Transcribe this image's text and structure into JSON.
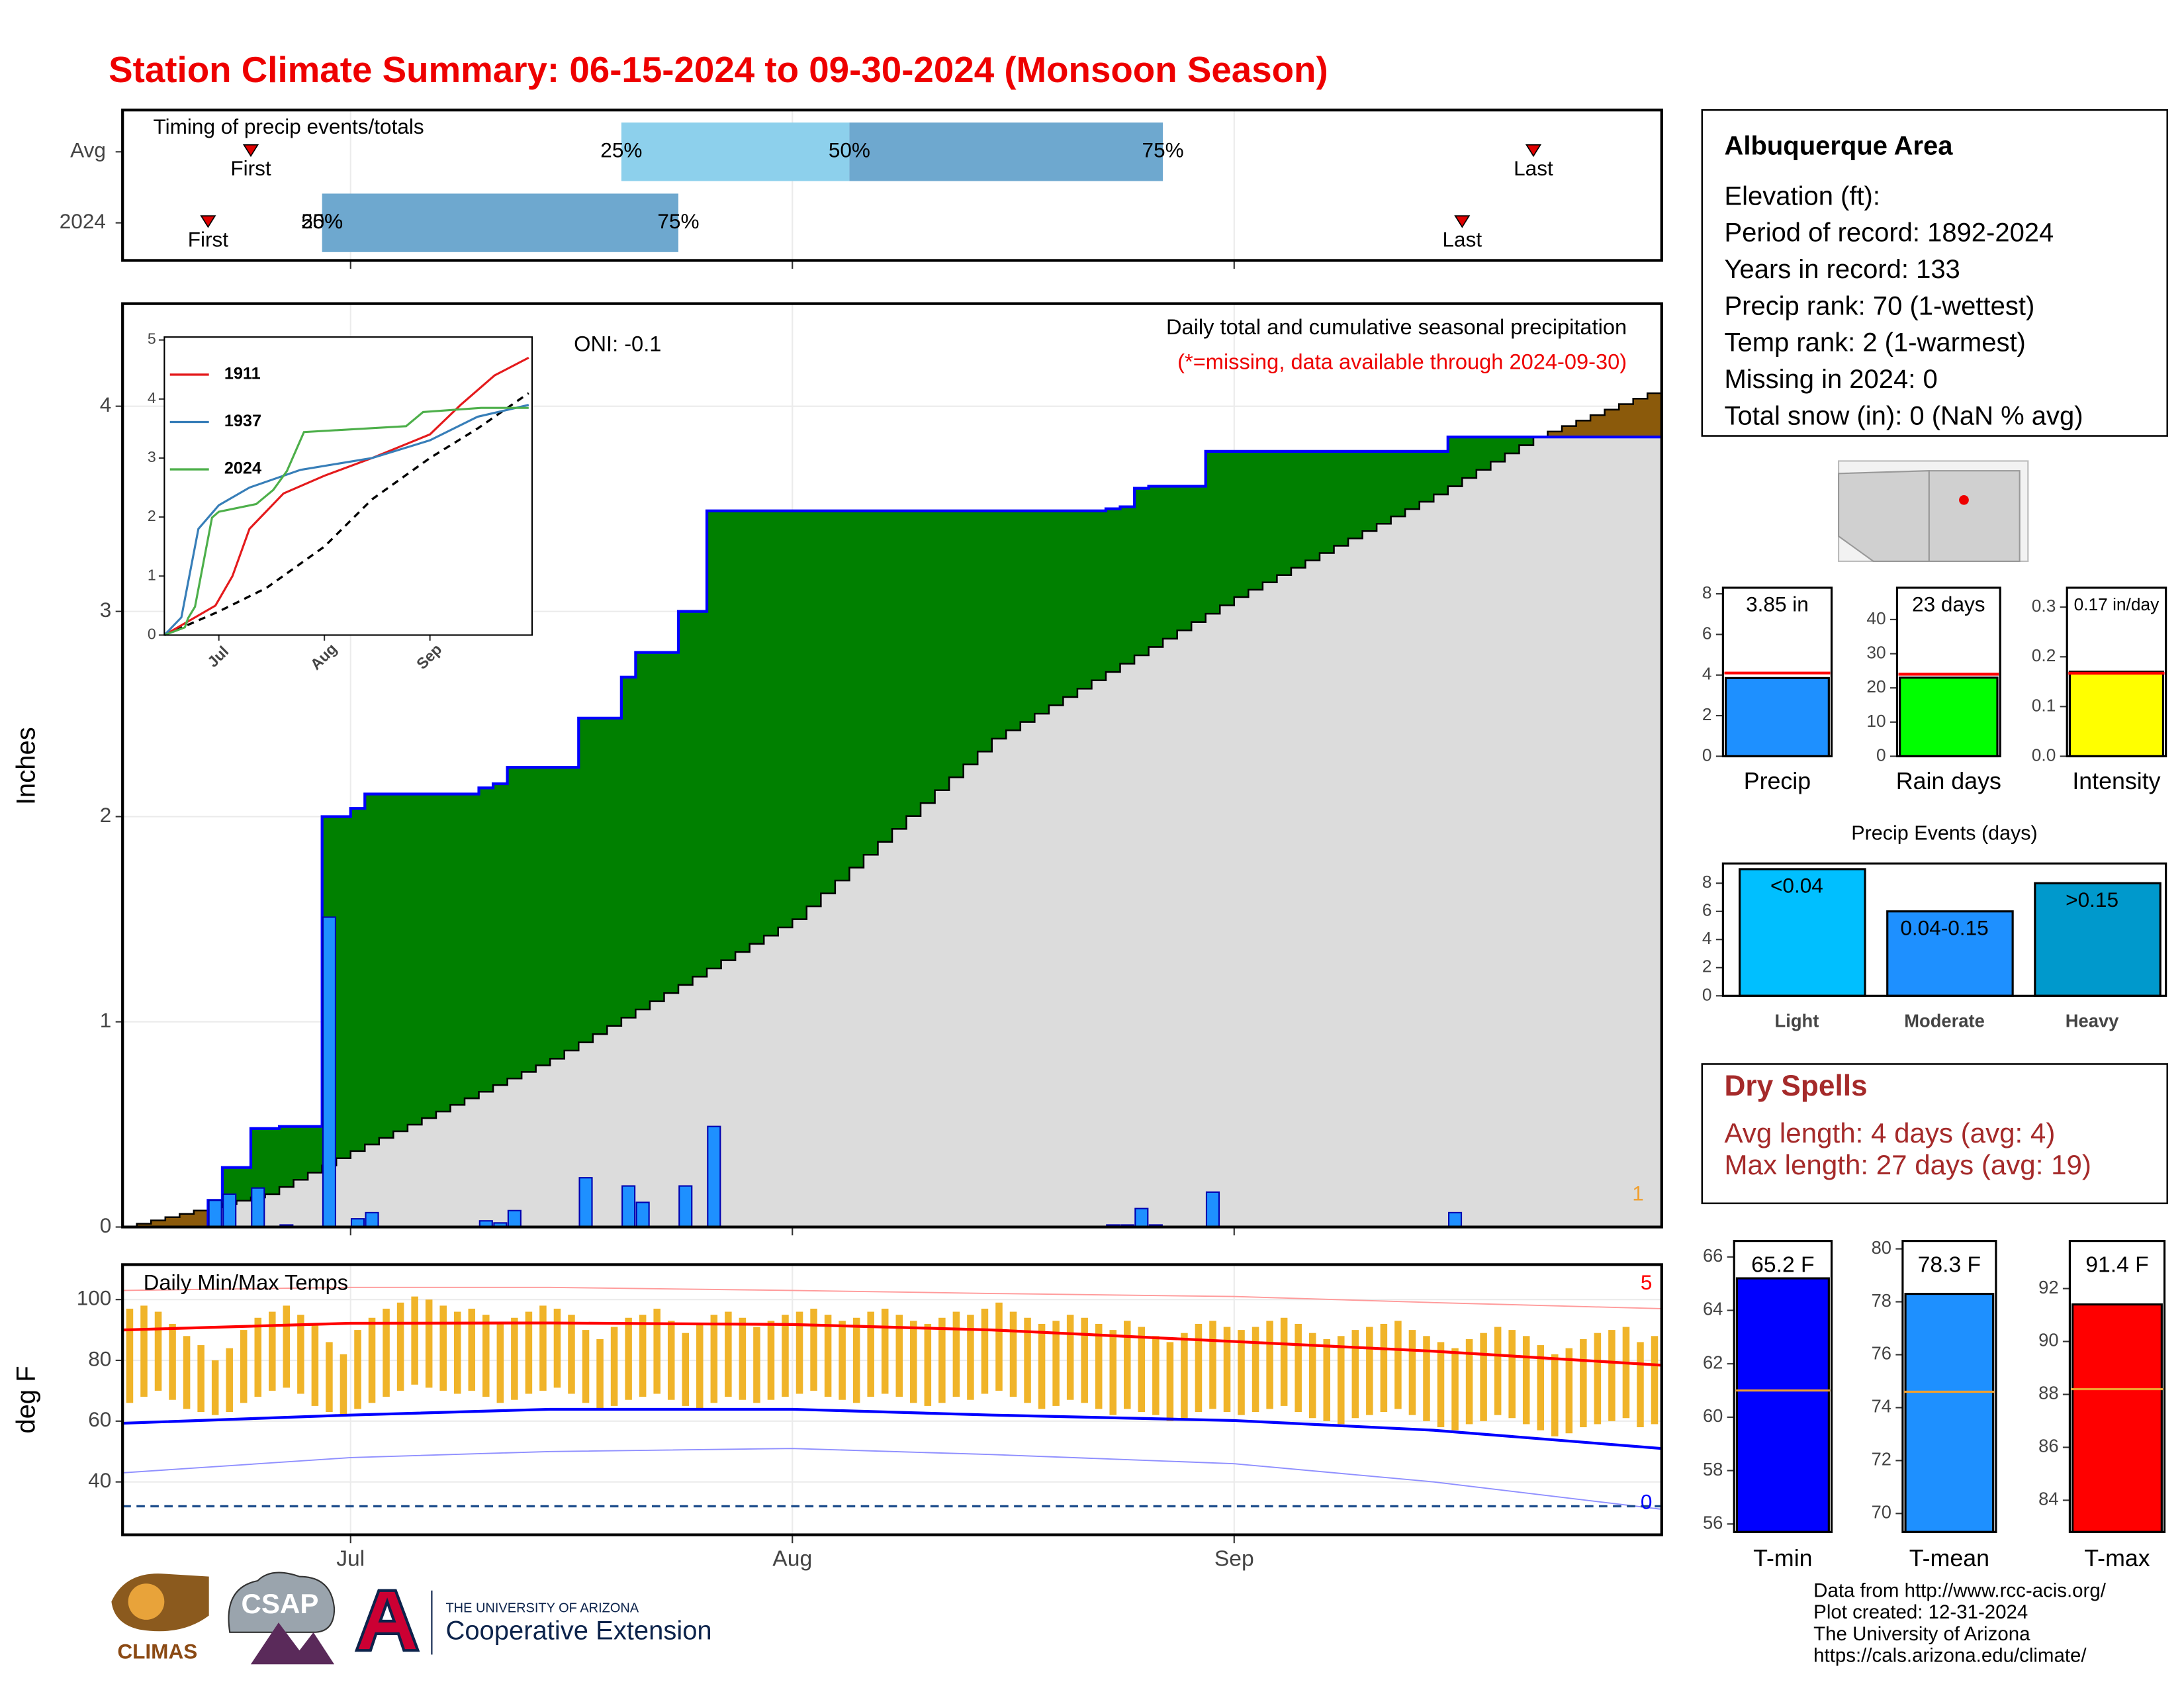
{
  "title": "Station Climate Summary: 06-15-2024 to 09-30-2024 (Monsoon Season)",
  "info": {
    "title": "Albuquerque Area",
    "lines": [
      "Elevation (ft):",
      "Period of record: 1892-2024",
      "Years in record: 133",
      "Precip rank: 70 (1-wettest)",
      "Temp rank: 2 (1-warmest)",
      "Missing in 2024: 0",
      "Total snow (in): 0 (NaN % avg)"
    ]
  },
  "dry_spells": {
    "title": "Dry Spells",
    "lines": [
      "Avg length: 4 days (avg: 4)",
      "Max length: 27 days (avg: 19)"
    ]
  },
  "footer": [
    "Data from http://www.rcc-acis.org/",
    "Plot created: 12-31-2024",
    "The University of Arizona",
    "https://cals.arizona.edu/climate/"
  ],
  "logos": {
    "climas": "CLIMAS",
    "csap": "CSAP",
    "ua_line1": "THE UNIVERSITY OF ARIZONA",
    "ua_line2": "Cooperative Extension"
  },
  "chart_data": [
    {
      "type": "timing",
      "title": "Timing of precip events/totals",
      "xlim": [
        "2024-06-15",
        "2024-10-01"
      ],
      "xticks": [
        "2024-07-01",
        "2024-08-01",
        "2024-09-01"
      ],
      "colors": [
        "#8dd0ec",
        "#6ea8cf"
      ],
      "marker_color": "#e00000",
      "rows": [
        {
          "name": "Avg",
          "first": {
            "x": "2024-06-24",
            "label": "First"
          },
          "q25": {
            "x": "2024-07-20",
            "label": "25%"
          },
          "q50": {
            "x": "2024-08-05",
            "label": "50%"
          },
          "q75": {
            "x": "2024-08-27",
            "label": "75%"
          },
          "last": {
            "x": "2024-09-22",
            "label": "Last"
          }
        },
        {
          "name": "2024",
          "first": {
            "x": "2024-06-21",
            "label": "First"
          },
          "q25": {
            "x": "2024-06-29",
            "label": "25%"
          },
          "q50": {
            "x": "2024-06-29",
            "label": "50%"
          },
          "q75": {
            "x": "2024-07-24",
            "label": "75%"
          },
          "last": {
            "x": "2024-09-17",
            "label": "Last"
          }
        }
      ]
    },
    {
      "type": "precip_cumulative",
      "title": "Daily total and cumulative seasonal precipitation",
      "subtitle": "(*=missing, data available through 2024-09-30)",
      "oni": "ONI: -0.1",
      "annotation": 1,
      "ylabel": "Inches",
      "xlim": [
        "2024-06-15",
        "2024-10-01"
      ],
      "xticks": [
        "2024-07-01",
        "2024-08-01",
        "2024-09-01"
      ],
      "ylim": [
        0,
        4.5
      ],
      "yticks": [
        0,
        1,
        2,
        3,
        4
      ],
      "grid": true,
      "colors": {
        "above": "#008000",
        "below": "#8b5a0b",
        "base": "#dcdcdc",
        "line": "#0000ff",
        "annotation": "#f0a030"
      },
      "daily": {
        "color": "#1e90ff",
        "x": [
          "2024-06-21",
          "2024-06-22",
          "2024-06-24",
          "2024-06-26",
          "2024-06-29",
          "2024-07-01",
          "2024-07-02",
          "2024-07-10",
          "2024-07-11",
          "2024-07-12",
          "2024-07-17",
          "2024-07-20",
          "2024-07-21",
          "2024-07-24",
          "2024-07-26",
          "2024-08-23",
          "2024-08-24",
          "2024-08-25",
          "2024-08-26",
          "2024-08-30",
          "2024-09-16"
        ],
        "values": [
          0.13,
          0.16,
          0.19,
          0.01,
          1.51,
          0.04,
          0.07,
          0.03,
          0.02,
          0.08,
          0.24,
          0.2,
          0.12,
          0.2,
          0.49,
          0.01,
          0.01,
          0.09,
          0.01,
          0.17,
          0.07
        ]
      },
      "normal": {
        "x": [
          "2024-06-15",
          "2024-06-25",
          "2024-07-01",
          "2024-07-15",
          "2024-08-01",
          "2024-08-15",
          "2024-09-01",
          "2024-09-15",
          "2024-09-22",
          "2024-10-01"
        ],
        "values": [
          0,
          0.16,
          0.37,
          0.82,
          1.5,
          2.38,
          3.07,
          3.57,
          3.85,
          4.09
        ]
      },
      "inset": {
        "xlim": [
          "2024-06-15",
          "2024-10-01"
        ],
        "xticks": [
          {
            "value": "2024-07-01",
            "label": "Jul"
          },
          {
            "value": "2024-08-01",
            "label": "Aug"
          },
          {
            "value": "2024-09-01",
            "label": "Sep"
          }
        ],
        "ylim": [
          0,
          5.05
        ],
        "yticks": [
          0,
          1,
          2,
          3,
          4,
          5
        ],
        "series": [
          {
            "name": "1911",
            "color": "#e41a1c",
            "x": [
              "2024-06-15",
              "2024-06-30",
              "2024-07-05",
              "2024-07-10",
              "2024-07-20",
              "2024-08-01",
              "2024-08-15",
              "2024-09-01",
              "2024-09-10",
              "2024-09-20",
              "2024-09-30"
            ],
            "values": [
              0,
              0.5,
              1.0,
              1.8,
              2.4,
              2.7,
              3.0,
              3.4,
              3.9,
              4.4,
              4.7
            ]
          },
          {
            "name": "1937",
            "color": "#377eb8",
            "x": [
              "2024-06-15",
              "2024-06-20",
              "2024-06-25",
              "2024-07-01",
              "2024-07-10",
              "2024-07-25",
              "2024-08-15",
              "2024-09-01",
              "2024-09-15",
              "2024-09-30"
            ],
            "values": [
              0,
              0.3,
              1.8,
              2.2,
              2.5,
              2.8,
              3.0,
              3.3,
              3.7,
              3.9
            ]
          },
          {
            "name": "2024",
            "color": "#4daf4a",
            "x": [
              "2024-06-15",
              "2024-06-21",
              "2024-06-22",
              "2024-06-24",
              "2024-06-29",
              "2024-07-01",
              "2024-07-12",
              "2024-07-17",
              "2024-07-21",
              "2024-07-26",
              "2024-08-25",
              "2024-08-30",
              "2024-09-16",
              "2024-09-30"
            ],
            "values": [
              0,
              0.13,
              0.29,
              0.48,
              1.99,
              2.09,
              2.22,
              2.46,
              2.78,
              3.44,
              3.54,
              3.78,
              3.85,
              3.85
            ]
          }
        ],
        "average": {
          "x": [
            "2024-06-15",
            "2024-07-01",
            "2024-07-15",
            "2024-08-01",
            "2024-08-15",
            "2024-09-01",
            "2024-09-15",
            "2024-09-30"
          ],
          "values": [
            0,
            0.4,
            0.8,
            1.5,
            2.3,
            3.0,
            3.5,
            4.1
          ]
        }
      }
    },
    {
      "type": "temperature_range",
      "title": "Daily Min/Max Temps",
      "ylabel": "deg F",
      "xlim": [
        "2024-06-15",
        "2024-10-01"
      ],
      "xticks": [
        {
          "value": "2024-07-01",
          "label": "Jul"
        },
        {
          "value": "2024-08-01",
          "label": "Aug"
        },
        {
          "value": "2024-09-01",
          "label": "Sep"
        }
      ],
      "ylim": [
        22.6,
        111.5
      ],
      "yticks": [
        40,
        60,
        80,
        100
      ],
      "grid": true,
      "bar_color": "#f0b429",
      "tmax": [
        97,
        98,
        96,
        92,
        88,
        85,
        80,
        84,
        90,
        94,
        96,
        98,
        95,
        92,
        86,
        82,
        90,
        94,
        97,
        99,
        101,
        100,
        98,
        96,
        97,
        95,
        92,
        94,
        96,
        98,
        97,
        95,
        90,
        87,
        91,
        94,
        95,
        97,
        93,
        89,
        92,
        95,
        96,
        94,
        91,
        93,
        95,
        96,
        97,
        95,
        93,
        94,
        96,
        97,
        95,
        93,
        92,
        94,
        96,
        95,
        97,
        99,
        96,
        94,
        92,
        93,
        95,
        94,
        92,
        90,
        93,
        91,
        88,
        86,
        89,
        92,
        93,
        91,
        90,
        91,
        93,
        94,
        92,
        89,
        87,
        88,
        90,
        91,
        92,
        93,
        90,
        88,
        86,
        84,
        87,
        89,
        91,
        90,
        88,
        85,
        82,
        84,
        87,
        89,
        90,
        91,
        86,
        88
      ],
      "tmin": [
        66,
        68,
        70,
        67,
        64,
        63,
        62,
        63,
        66,
        68,
        70,
        71,
        69,
        65,
        63,
        62,
        64,
        66,
        68,
        70,
        72,
        71,
        70,
        69,
        70,
        68,
        66,
        67,
        69,
        70,
        71,
        69,
        66,
        64,
        65,
        67,
        68,
        69,
        67,
        65,
        64,
        66,
        68,
        67,
        66,
        67,
        68,
        69,
        70,
        68,
        67,
        66,
        68,
        69,
        68,
        66,
        65,
        66,
        68,
        67,
        69,
        70,
        68,
        66,
        64,
        65,
        67,
        66,
        64,
        62,
        64,
        63,
        62,
        60,
        61,
        63,
        64,
        63,
        62,
        63,
        64,
        65,
        63,
        61,
        60,
        59,
        61,
        62,
        63,
        64,
        62,
        60,
        58,
        57,
        59,
        60,
        62,
        61,
        59,
        57,
        55,
        56,
        58,
        59,
        60,
        61,
        58,
        59
      ],
      "record_high": {
        "color": "#ff9a9a",
        "x": [
          "2024-06-15",
          "2024-07-01",
          "2024-07-15",
          "2024-08-01",
          "2024-08-15",
          "2024-09-01",
          "2024-09-15",
          "2024-10-01"
        ],
        "values": [
          103,
          104,
          104,
          103,
          102,
          101,
          99,
          97
        ]
      },
      "record_low": {
        "color": "#8f8fff",
        "x": [
          "2024-06-15",
          "2024-07-01",
          "2024-07-15",
          "2024-08-01",
          "2024-08-15",
          "2024-09-01",
          "2024-09-15",
          "2024-10-01"
        ],
        "values": [
          43,
          48,
          50,
          51,
          49,
          46,
          40,
          31
        ]
      },
      "normal_high": {
        "color": "#ff0000",
        "x": [
          "2024-06-15",
          "2024-07-01",
          "2024-07-15",
          "2024-08-01",
          "2024-08-15",
          "2024-09-01",
          "2024-09-15",
          "2024-10-01"
        ],
        "values": [
          90,
          92.2,
          92.3,
          91.8,
          90,
          86.2,
          83,
          78.4
        ]
      },
      "normal_low": {
        "color": "#0000ff",
        "x": [
          "2024-06-15",
          "2024-07-01",
          "2024-07-15",
          "2024-08-01",
          "2024-08-15",
          "2024-09-01",
          "2024-09-15",
          "2024-10-01"
        ],
        "values": [
          59.3,
          62,
          63.9,
          63.9,
          62,
          60.2,
          57,
          51
        ]
      },
      "freeze": 32,
      "freeze_color": "#1f4e8c",
      "record_high_count": 5,
      "record_low_count": 0
    },
    {
      "type": "summary_bar",
      "category": "Precip",
      "value": 3.85,
      "value_label": "3.85 in",
      "average": 4.1,
      "average_color": "#ff0000",
      "color": "#1e90ff",
      "ylim": [
        0,
        8.3
      ],
      "yticks": [
        0,
        2,
        4,
        6,
        8
      ]
    },
    {
      "type": "summary_bar",
      "category": "Rain days",
      "value": 23,
      "value_label": "23 days",
      "average": 24,
      "average_color": "#ff0000",
      "color": "#00ff00",
      "ylim": [
        0,
        49.3
      ],
      "yticks": [
        0,
        10,
        20,
        30,
        40
      ]
    },
    {
      "type": "summary_bar",
      "category": "Intensity",
      "value": 0.17,
      "value_label": "0.17 in/day",
      "average": 0.167,
      "average_color": "#ff0000",
      "color": "#ffff00",
      "ylim": [
        0,
        0.339
      ],
      "yticks": [
        {
          "value": 0,
          "label": "0.0"
        },
        0.1,
        0.2,
        0.3
      ]
    },
    {
      "type": "bar",
      "title": "Precip Events (days)",
      "categories": [
        "Light",
        "Moderate",
        "Heavy"
      ],
      "thresholds": [
        "<0.04",
        "0.04-0.15",
        ">0.15"
      ],
      "values": [
        9,
        6,
        8
      ],
      "colors": [
        "#00bfff",
        "#1e90ff",
        "#0099cc"
      ],
      "ylim": [
        0,
        9.4
      ],
      "yticks": [
        0,
        2,
        4,
        6,
        8
      ]
    },
    {
      "type": "summary_bar",
      "category": "T-min",
      "value": 65.2,
      "value_label": "65.2 F",
      "average": 61.0,
      "average_color": "#f0a030",
      "color": "#0000ff",
      "ylim": [
        55.7,
        66.6
      ],
      "yticks": [
        56,
        58,
        60,
        62,
        64,
        66
      ]
    },
    {
      "type": "summary_bar",
      "category": "T-mean",
      "value": 78.3,
      "value_label": "78.3 F",
      "average": 74.6,
      "average_color": "#f0a030",
      "color": "#1e90ff",
      "ylim": [
        69.3,
        80.3
      ],
      "yticks": [
        70,
        72,
        74,
        76,
        78,
        80
      ]
    },
    {
      "type": "summary_bar",
      "category": "T-max",
      "value": 91.4,
      "value_label": "91.4 F",
      "average": 88.2,
      "average_color": "#f0a030",
      "color": "#ff0000",
      "ylim": [
        82.8,
        93.8
      ],
      "yticks": [
        84,
        86,
        88,
        90,
        92
      ]
    }
  ]
}
